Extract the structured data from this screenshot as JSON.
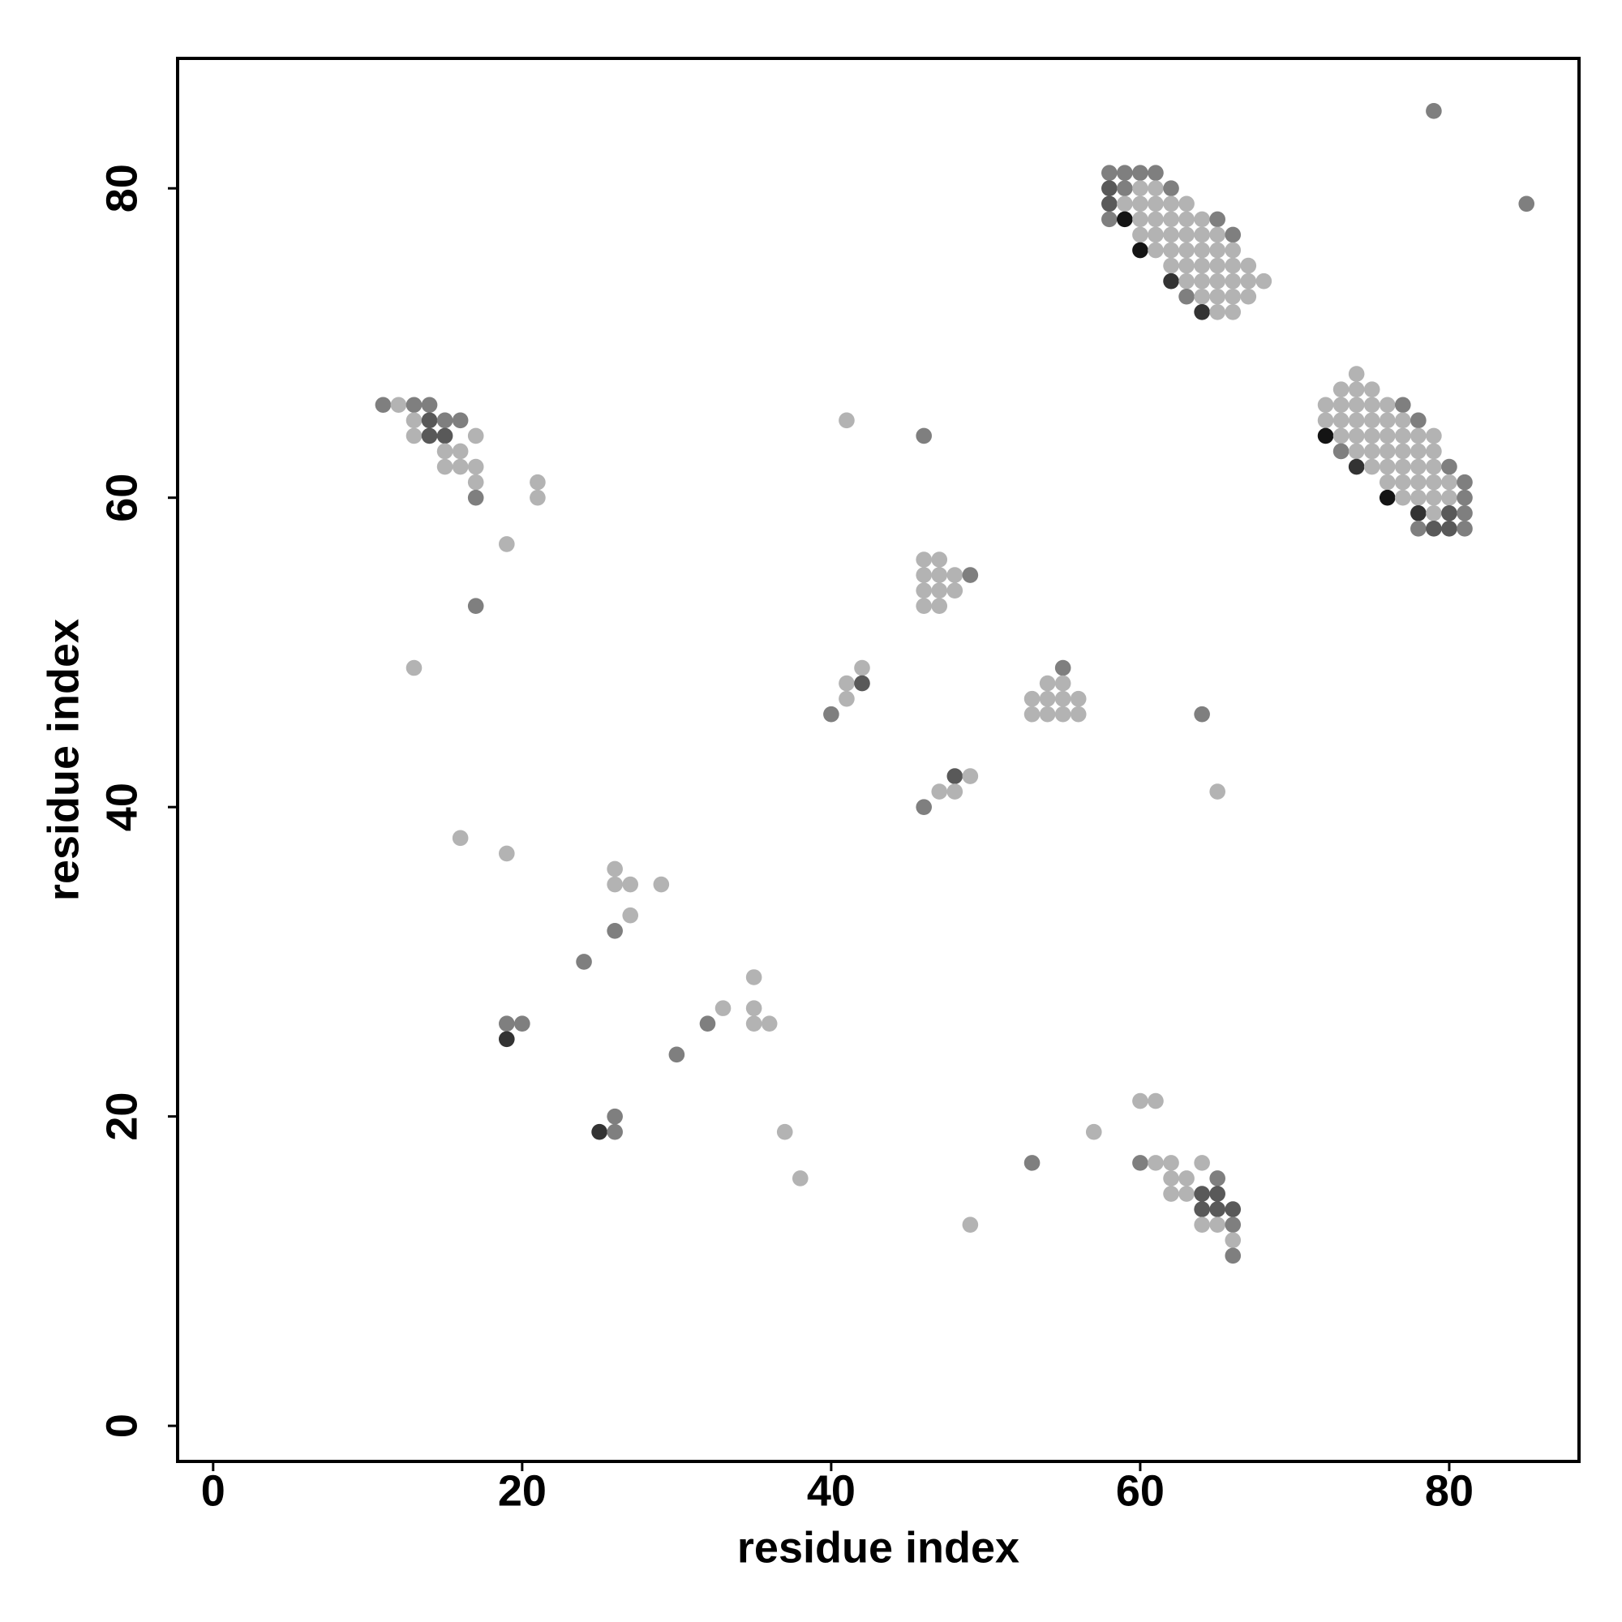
{
  "chart_data": {
    "type": "scatter",
    "xlabel": "residue index",
    "ylabel": "residue index",
    "xlim": [
      -2.3,
      88.4
    ],
    "ylim": [
      -2.3,
      88.4
    ],
    "xticks": [
      0,
      20,
      40,
      60,
      80
    ],
    "yticks": [
      0,
      20,
      40,
      60,
      80
    ],
    "grid": false,
    "x": [
      79,
      85,
      58,
      59,
      60,
      61,
      58,
      59,
      60,
      61,
      62,
      58,
      59,
      60,
      61,
      62,
      63,
      58,
      59,
      60,
      61,
      62,
      63,
      64,
      65,
      60,
      61,
      62,
      63,
      64,
      65,
      66,
      60,
      61,
      62,
      63,
      64,
      65,
      66,
      62,
      63,
      64,
      65,
      66,
      67,
      62,
      63,
      64,
      65,
      66,
      67,
      68,
      63,
      64,
      65,
      66,
      67,
      64,
      65,
      66,
      74,
      73,
      74,
      75,
      72,
      73,
      74,
      75,
      76,
      77,
      72,
      73,
      74,
      75,
      76,
      77,
      78,
      72,
      73,
      74,
      75,
      76,
      77,
      78,
      79,
      73,
      74,
      75,
      76,
      77,
      78,
      79,
      74,
      75,
      76,
      77,
      78,
      79,
      80,
      76,
      77,
      78,
      79,
      80,
      81,
      76,
      77,
      78,
      79,
      80,
      81,
      78,
      79,
      80,
      81,
      78,
      79,
      80,
      81,
      11,
      12,
      13,
      14,
      13,
      14,
      15,
      16,
      13,
      14,
      15,
      17,
      15,
      16,
      15,
      16,
      17,
      17,
      21,
      17,
      21,
      19,
      17,
      13,
      16,
      19,
      41,
      46,
      46,
      47,
      46,
      47,
      48,
      49,
      46,
      47,
      48,
      46,
      47,
      55,
      54,
      55,
      53,
      54,
      55,
      56,
      53,
      54,
      55,
      56,
      42,
      41,
      42,
      41,
      40,
      64,
      65,
      48,
      49,
      47,
      48,
      46,
      26,
      26,
      27,
      29,
      27,
      26,
      24,
      35,
      33,
      35,
      32,
      35,
      36,
      19,
      20,
      19,
      30,
      26,
      25,
      26,
      37,
      38,
      49,
      60,
      61,
      57,
      53,
      60,
      61,
      62,
      64,
      62,
      63,
      65,
      62,
      63,
      64,
      65,
      64,
      65,
      66,
      64,
      65,
      66,
      66,
      66
    ],
    "y": [
      85,
      79,
      81,
      81,
      81,
      81,
      80,
      80,
      80,
      80,
      80,
      79,
      79,
      79,
      79,
      79,
      79,
      78,
      78,
      78,
      78,
      78,
      78,
      78,
      78,
      77,
      77,
      77,
      77,
      77,
      77,
      77,
      76,
      76,
      76,
      76,
      76,
      76,
      76,
      75,
      75,
      75,
      75,
      75,
      75,
      74,
      74,
      74,
      74,
      74,
      74,
      74,
      73,
      73,
      73,
      73,
      73,
      72,
      72,
      72,
      68,
      67,
      67,
      67,
      66,
      66,
      66,
      66,
      66,
      66,
      65,
      65,
      65,
      65,
      65,
      65,
      65,
      64,
      64,
      64,
      64,
      64,
      64,
      64,
      64,
      63,
      63,
      63,
      63,
      63,
      63,
      63,
      62,
      62,
      62,
      62,
      62,
      62,
      62,
      61,
      61,
      61,
      61,
      61,
      61,
      60,
      60,
      60,
      60,
      60,
      60,
      59,
      59,
      59,
      59,
      58,
      58,
      58,
      58,
      66,
      66,
      66,
      66,
      65,
      65,
      65,
      65,
      64,
      64,
      64,
      64,
      63,
      63,
      62,
      62,
      62,
      61,
      61,
      60,
      60,
      57,
      53,
      49,
      38,
      37,
      65,
      64,
      56,
      56,
      55,
      55,
      55,
      55,
      54,
      54,
      54,
      53,
      53,
      49,
      48,
      48,
      47,
      47,
      47,
      47,
      46,
      46,
      46,
      46,
      49,
      48,
      48,
      47,
      46,
      46,
      41,
      42,
      42,
      41,
      41,
      40,
      36,
      35,
      35,
      35,
      33,
      32,
      30,
      29,
      27,
      27,
      26,
      26,
      26,
      26,
      26,
      25,
      24,
      20,
      19,
      19,
      19,
      16,
      13,
      21,
      21,
      19,
      17,
      17,
      17,
      17,
      17,
      16,
      16,
      16,
      15,
      15,
      15,
      15,
      14,
      14,
      14,
      13,
      13,
      13,
      12,
      11
    ],
    "colors": [
      "#7f7f7f",
      "#7f7f7f",
      "#7f7f7f",
      "#7f7f7f",
      "#7f7f7f",
      "#7f7f7f",
      "#595959",
      "#7f7f7f",
      "#b3b3b3",
      "#b3b3b3",
      "#7f7f7f",
      "#595959",
      "#b3b3b3",
      "#b3b3b3",
      "#b3b3b3",
      "#b3b3b3",
      "#b3b3b3",
      "#7f7f7f",
      "#141414",
      "#b3b3b3",
      "#b3b3b3",
      "#b3b3b3",
      "#b3b3b3",
      "#b3b3b3",
      "#7f7f7f",
      "#b3b3b3",
      "#b3b3b3",
      "#b3b3b3",
      "#b3b3b3",
      "#b3b3b3",
      "#b3b3b3",
      "#7f7f7f",
      "#141414",
      "#b3b3b3",
      "#b3b3b3",
      "#b3b3b3",
      "#b3b3b3",
      "#b3b3b3",
      "#b3b3b3",
      "#b3b3b3",
      "#b3b3b3",
      "#b3b3b3",
      "#b3b3b3",
      "#b3b3b3",
      "#b3b3b3",
      "#333333",
      "#b3b3b3",
      "#b3b3b3",
      "#b3b3b3",
      "#b3b3b3",
      "#b3b3b3",
      "#b3b3b3",
      "#7f7f7f",
      "#b3b3b3",
      "#b3b3b3",
      "#b3b3b3",
      "#b3b3b3",
      "#333333",
      "#b3b3b3",
      "#b3b3b3",
      "#b3b3b3",
      "#b3b3b3",
      "#b3b3b3",
      "#b3b3b3",
      "#b3b3b3",
      "#b3b3b3",
      "#b3b3b3",
      "#b3b3b3",
      "#b3b3b3",
      "#7f7f7f",
      "#b3b3b3",
      "#b3b3b3",
      "#b3b3b3",
      "#b3b3b3",
      "#b3b3b3",
      "#b3b3b3",
      "#7f7f7f",
      "#141414",
      "#b3b3b3",
      "#b3b3b3",
      "#b3b3b3",
      "#b3b3b3",
      "#b3b3b3",
      "#b3b3b3",
      "#b3b3b3",
      "#7f7f7f",
      "#b3b3b3",
      "#b3b3b3",
      "#b3b3b3",
      "#b3b3b3",
      "#b3b3b3",
      "#b3b3b3",
      "#333333",
      "#b3b3b3",
      "#b3b3b3",
      "#b3b3b3",
      "#b3b3b3",
      "#b3b3b3",
      "#7f7f7f",
      "#b3b3b3",
      "#b3b3b3",
      "#b3b3b3",
      "#b3b3b3",
      "#b3b3b3",
      "#7f7f7f",
      "#141414",
      "#b3b3b3",
      "#b3b3b3",
      "#b3b3b3",
      "#b3b3b3",
      "#7f7f7f",
      "#333333",
      "#b3b3b3",
      "#595959",
      "#7f7f7f",
      "#7f7f7f",
      "#595959",
      "#595959",
      "#7f7f7f",
      "#7f7f7f",
      "#b3b3b3",
      "#7f7f7f",
      "#7f7f7f",
      "#b3b3b3",
      "#595959",
      "#7f7f7f",
      "#7f7f7f",
      "#b3b3b3",
      "#595959",
      "#595959",
      "#b3b3b3",
      "#b3b3b3",
      "#b3b3b3",
      "#b3b3b3",
      "#b3b3b3",
      "#b3b3b3",
      "#b3b3b3",
      "#b3b3b3",
      "#7f7f7f",
      "#b3b3b3",
      "#b3b3b3",
      "#7f7f7f",
      "#b3b3b3",
      "#b3b3b3",
      "#b3b3b3",
      "#b3b3b3",
      "#7f7f7f",
      "#b3b3b3",
      "#b3b3b3",
      "#b3b3b3",
      "#b3b3b3",
      "#b3b3b3",
      "#7f7f7f",
      "#b3b3b3",
      "#b3b3b3",
      "#b3b3b3",
      "#b3b3b3",
      "#b3b3b3",
      "#7f7f7f",
      "#b3b3b3",
      "#b3b3b3",
      "#b3b3b3",
      "#b3b3b3",
      "#b3b3b3",
      "#b3b3b3",
      "#b3b3b3",
      "#b3b3b3",
      "#b3b3b3",
      "#b3b3b3",
      "#b3b3b3",
      "#b3b3b3",
      "#595959",
      "#b3b3b3",
      "#7f7f7f",
      "#7f7f7f",
      "#b3b3b3",
      "#595959",
      "#b3b3b3",
      "#b3b3b3",
      "#b3b3b3",
      "#7f7f7f",
      "#b3b3b3",
      "#b3b3b3",
      "#b3b3b3",
      "#b3b3b3",
      "#b3b3b3",
      "#7f7f7f",
      "#7f7f7f",
      "#b3b3b3",
      "#b3b3b3",
      "#b3b3b3",
      "#7f7f7f",
      "#b3b3b3",
      "#b3b3b3",
      "#7f7f7f",
      "#7f7f7f",
      "#333333",
      "#7f7f7f",
      "#7f7f7f",
      "#333333",
      "#7f7f7f",
      "#b3b3b3",
      "#b3b3b3",
      "#b3b3b3",
      "#b3b3b3",
      "#b3b3b3",
      "#b3b3b3",
      "#7f7f7f",
      "#7f7f7f",
      "#b3b3b3",
      "#b3b3b3",
      "#b3b3b3",
      "#b3b3b3",
      "#b3b3b3",
      "#7f7f7f",
      "#b3b3b3",
      "#b3b3b3",
      "#595959",
      "#595959",
      "#595959",
      "#595959",
      "#595959",
      "#b3b3b3",
      "#b3b3b3",
      "#7f7f7f",
      "#b3b3b3",
      "#7f7f7f"
    ]
  }
}
